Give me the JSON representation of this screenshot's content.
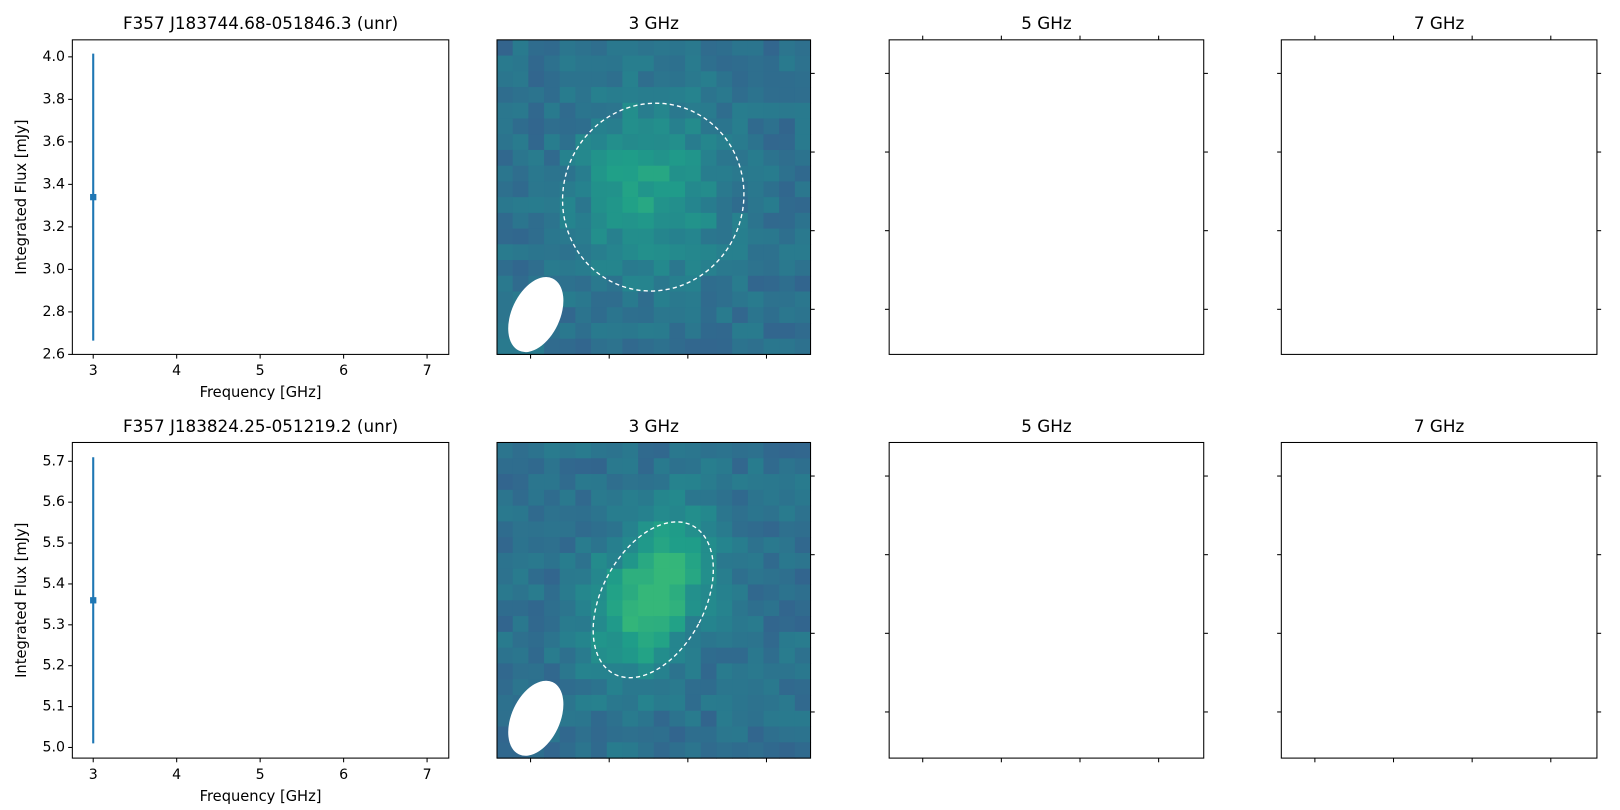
{
  "chart_data": [
    {
      "type": "errorbar",
      "title": "F357 J183744.68-051846.3 (unr)",
      "x_label": "Frequency [GHz]",
      "y_label": "Integrated Flux [mJy]",
      "x": [
        3
      ],
      "values": [
        3.34
      ],
      "errors": [
        0.675
      ],
      "color": "#1f77b4",
      "xlim": [
        2.75,
        7.26
      ],
      "xticks": [
        3,
        4,
        5,
        6,
        7
      ],
      "ylim": [
        2.6,
        4.08
      ],
      "yticks": [
        2.6,
        2.8,
        {
          "value": 3,
          "label": "3.0"
        },
        3.2,
        3.4,
        3.6,
        3.8,
        {
          "value": 4,
          "label": "4.0"
        }
      ]
    },
    {
      "type": "image",
      "title": "3 GHz"
    },
    {
      "type": "image",
      "title": "5 GHz"
    },
    {
      "type": "image",
      "title": "7 GHz"
    },
    {
      "type": "errorbar",
      "title": "F357 J183824.25-051219.2 (unr)",
      "x_label": "Frequency [GHz]",
      "y_label": "Integrated Flux [mJy]",
      "x": [
        3
      ],
      "values": [
        5.36
      ],
      "errors": [
        0.35
      ],
      "color": "#1f77b4",
      "xlim": [
        2.75,
        7.26
      ],
      "xticks": [
        3,
        4,
        5,
        6,
        7
      ],
      "ylim": [
        4.974,
        5.746
      ],
      "yticks": [
        {
          "value": 5,
          "label": "5.0"
        },
        5.1,
        5.2,
        5.3,
        5.4,
        5.5,
        5.6,
        5.7
      ]
    },
    {
      "type": "image",
      "title": "3 GHz"
    },
    {
      "type": "image",
      "title": "5 GHz"
    },
    {
      "type": "image",
      "title": "7 GHz"
    }
  ]
}
